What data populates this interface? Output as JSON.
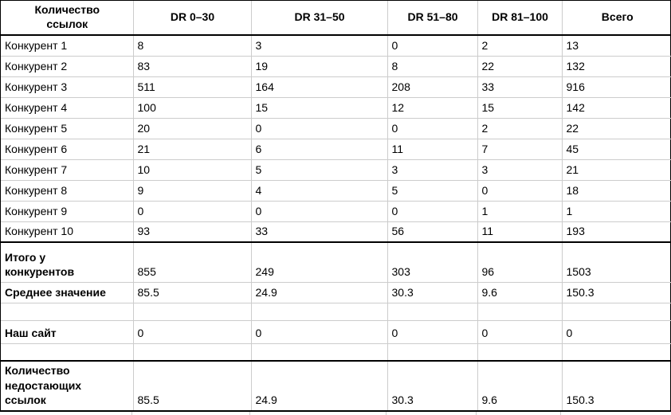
{
  "chart_data": {
    "type": "table",
    "corner_header": "Количество ссылок",
    "column_headers": [
      "DR 0–30",
      "DR 31–50",
      "DR 51–80",
      "DR 81–100",
      "Всего"
    ],
    "rows": [
      {
        "kind": "data",
        "label": "Конкурент 1",
        "values": [
          "8",
          "3",
          "0",
          "2",
          "13"
        ]
      },
      {
        "kind": "data",
        "label": "Конкурент 2",
        "values": [
          "83",
          "19",
          "8",
          "22",
          "132"
        ]
      },
      {
        "kind": "data",
        "label": "Конкурент 3",
        "values": [
          "511",
          "164",
          "208",
          "33",
          "916"
        ]
      },
      {
        "kind": "data",
        "label": "Конкурент 4",
        "values": [
          "100",
          "15",
          "12",
          "15",
          "142"
        ]
      },
      {
        "kind": "data",
        "label": "Конкурент 5",
        "values": [
          "20",
          "0",
          "0",
          "2",
          "22"
        ]
      },
      {
        "kind": "data",
        "label": "Конкурент 6",
        "values": [
          "21",
          "6",
          "11",
          "7",
          "45"
        ]
      },
      {
        "kind": "data",
        "label": "Конкурент 7",
        "values": [
          "10",
          "5",
          "3",
          "3",
          "21"
        ]
      },
      {
        "kind": "data",
        "label": "Конкурент 8",
        "values": [
          "9",
          "4",
          "5",
          "0",
          "18"
        ]
      },
      {
        "kind": "data",
        "label": "Конкурент 9",
        "values": [
          "0",
          "0",
          "0",
          "1",
          "1"
        ]
      },
      {
        "kind": "data",
        "label": "Конкурент 10",
        "values": [
          "93",
          "33",
          "56",
          "11",
          "193"
        ]
      },
      {
        "kind": "total",
        "label": "Итого у конкурентов",
        "values": [
          "855",
          "249",
          "303",
          "96",
          "1503"
        ]
      },
      {
        "kind": "average",
        "label": "Среднее значение",
        "values": [
          "85.5",
          "24.9",
          "30.3",
          "9.6",
          "150.3"
        ]
      },
      {
        "kind": "spacer",
        "label": "",
        "values": [
          "",
          "",
          "",
          "",
          ""
        ]
      },
      {
        "kind": "our-site",
        "label": "Наш сайт",
        "values": [
          "0",
          "0",
          "0",
          "0",
          "0"
        ]
      },
      {
        "kind": "spacer",
        "label": "",
        "values": [
          "",
          "",
          "",
          "",
          ""
        ]
      },
      {
        "kind": "missing",
        "label": "Количество недостающих ссылок",
        "values": [
          "85.5",
          "24.9",
          "30.3",
          "9.6",
          "150.3"
        ]
      }
    ]
  },
  "colors": {
    "grid": "#cccccc",
    "border": "#000000",
    "text": "#000000",
    "background": "#ffffff"
  }
}
